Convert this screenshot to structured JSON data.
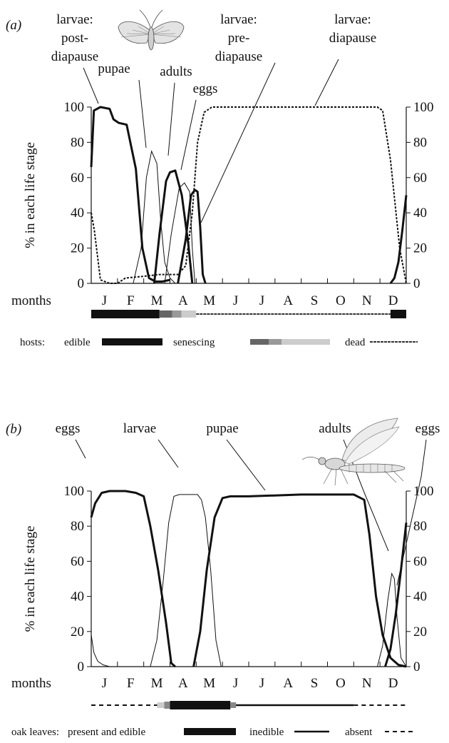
{
  "panels": [
    {
      "panel_label": "(a)",
      "y_axis_label": "% in each life stage",
      "months_label": "months",
      "months": [
        "J",
        "F",
        "M",
        "A",
        "M",
        "J",
        "J",
        "A",
        "S",
        "O",
        "N",
        "D"
      ],
      "stage_labels": [
        {
          "id": "larvae-post",
          "lines": [
            "larvae:",
            "post-",
            "diapause"
          ]
        },
        {
          "id": "pupae",
          "lines": [
            "pupae"
          ]
        },
        {
          "id": "adults",
          "lines": [
            "adults"
          ]
        },
        {
          "id": "eggs",
          "lines": [
            "eggs"
          ]
        },
        {
          "id": "larvae-pre",
          "lines": [
            "larvae:",
            "pre-",
            "diapause"
          ]
        },
        {
          "id": "larvae-dia",
          "lines": [
            "larvae:",
            "diapause"
          ]
        }
      ],
      "legend": {
        "prefix": "hosts:",
        "edible": "edible",
        "senescing": "senescing",
        "dead": "dead"
      },
      "illustration": "moth-drawing"
    },
    {
      "panel_label": "(b)",
      "y_axis_label": "% in each life stage",
      "months_label": "months",
      "months": [
        "J",
        "F",
        "M",
        "A",
        "M",
        "J",
        "J",
        "A",
        "S",
        "O",
        "N",
        "D"
      ],
      "stage_labels": [
        {
          "id": "eggs-1",
          "lines": [
            "eggs"
          ]
        },
        {
          "id": "larvae",
          "lines": [
            "larvae"
          ]
        },
        {
          "id": "pupae",
          "lines": [
            "pupae"
          ]
        },
        {
          "id": "adults",
          "lines": [
            "adults"
          ]
        },
        {
          "id": "eggs-2",
          "lines": [
            "eggs"
          ]
        }
      ],
      "legend": {
        "prefix": "oak leaves:",
        "edible": "present and edible",
        "inedible": "inedible",
        "absent": "absent"
      },
      "illustration": "fly-drawing"
    }
  ],
  "chart_data": [
    {
      "type": "line",
      "x_unit": "month (0 = start of January, 12 = end of December)",
      "ylim": [
        0,
        100
      ],
      "yticks": [
        0,
        20,
        40,
        60,
        80,
        100
      ],
      "grid": false,
      "series": [
        {
          "name": "larvae: post-diapause",
          "style": "thick",
          "x": [
            0,
            0.1,
            0.35,
            0.7,
            0.85,
            1.05,
            1.35,
            1.7,
            1.95,
            2.2,
            2.45,
            2.7,
            3.0
          ],
          "y": [
            66,
            98,
            100,
            99,
            93,
            91,
            90,
            65,
            20,
            3,
            1,
            1,
            2
          ]
        },
        {
          "name": "pupae",
          "style": "thin",
          "x": [
            1.6,
            1.9,
            2.1,
            2.3,
            2.5,
            2.65,
            2.8,
            3.0,
            3.2
          ],
          "y": [
            0,
            20,
            60,
            75,
            68,
            35,
            12,
            3,
            0
          ]
        },
        {
          "name": "adults",
          "style": "thick",
          "x": [
            2.4,
            2.6,
            2.85,
            3.0,
            3.2,
            3.45,
            3.7,
            3.85
          ],
          "y": [
            0,
            28,
            58,
            63,
            64,
            50,
            22,
            0
          ]
        },
        {
          "name": "eggs",
          "style": "thin",
          "x": [
            2.8,
            3.05,
            3.35,
            3.55,
            3.75,
            3.85,
            3.95
          ],
          "y": [
            0,
            28,
            54,
            57,
            52,
            20,
            0
          ]
        },
        {
          "name": "larvae: pre-diapause",
          "style": "thick",
          "x": [
            3.3,
            3.6,
            3.8,
            3.95,
            4.05,
            4.15,
            4.25,
            4.35
          ],
          "y": [
            0,
            25,
            50,
            53,
            52,
            32,
            5,
            0
          ]
        },
        {
          "name": "larvae: diapause",
          "style": "dashed",
          "x": [
            0,
            0.12,
            0.35,
            0.7,
            1.0,
            1.3,
            2.0,
            2.6,
            3.3,
            3.6,
            3.85,
            4.05,
            4.3,
            4.6,
            10.9,
            11.1,
            11.4,
            11.75,
            12.0
          ],
          "y": [
            40,
            30,
            2,
            0,
            0,
            3,
            4,
            5,
            5,
            10,
            40,
            80,
            97,
            100,
            100,
            98,
            70,
            20,
            0
          ]
        },
        {
          "name": "larvae: post-diapause (December)",
          "style": "thick",
          "x": [
            11.4,
            11.55,
            11.7,
            11.85,
            12.0
          ],
          "y": [
            0,
            3,
            12,
            30,
            50
          ]
        }
      ],
      "host_bar": [
        {
          "state": "edible",
          "from": 0,
          "to": 2.6
        },
        {
          "state": "senescing",
          "from": 2.6,
          "to": 4.0
        },
        {
          "state": "dead",
          "from": 4.0,
          "to": 11.4
        },
        {
          "state": "edible",
          "from": 11.4,
          "to": 12.0
        }
      ]
    },
    {
      "type": "line",
      "x_unit": "month (0 = start of January, 12 = end of December)",
      "ylim": [
        0,
        100
      ],
      "yticks": [
        0,
        20,
        40,
        60,
        80,
        100
      ],
      "grid": false,
      "series": [
        {
          "name": "eggs",
          "style": "thick",
          "x": [
            0,
            0.15,
            0.4,
            0.7,
            1.3,
            1.7,
            2.0,
            2.25,
            2.55,
            2.85,
            3.05,
            3.2
          ],
          "y": [
            85,
            93,
            99,
            100,
            100,
            99,
            97,
            80,
            55,
            25,
            2,
            0
          ]
        },
        {
          "name": "larvae",
          "style": "thin",
          "x": [
            2.25,
            2.5,
            2.75,
            2.95,
            3.15,
            3.35,
            3.55,
            3.75,
            4.05,
            4.2,
            4.35,
            4.55,
            4.75,
            4.95
          ],
          "y": [
            0,
            15,
            50,
            82,
            97,
            98,
            98,
            98,
            98,
            95,
            85,
            55,
            15,
            0
          ]
        },
        {
          "name": "pupae",
          "style": "thick",
          "x": [
            3.9,
            4.15,
            4.4,
            4.7,
            5.0,
            5.3,
            6.0,
            8.0,
            10.0,
            10.4,
            10.6,
            10.85,
            11.1,
            11.4,
            11.7,
            12.0
          ],
          "y": [
            0,
            20,
            55,
            85,
            96,
            97,
            97,
            98,
            98,
            95,
            75,
            40,
            18,
            5,
            1,
            0
          ]
        },
        {
          "name": "adults",
          "style": "thin",
          "x": [
            10.9,
            11.1,
            11.3,
            11.45,
            11.55,
            11.65,
            11.8,
            12.0
          ],
          "y": [
            0,
            12,
            38,
            53,
            50,
            28,
            5,
            0
          ]
        },
        {
          "name": "eggs (December)",
          "style": "thick",
          "x": [
            11.2,
            11.4,
            11.6,
            11.8,
            12.0
          ],
          "y": [
            0,
            10,
            30,
            55,
            82
          ]
        },
        {
          "name": "larvae (January)",
          "style": "thin",
          "x": [
            0,
            0.1,
            0.25,
            0.45,
            0.7
          ],
          "y": [
            18,
            8,
            3,
            1,
            0
          ]
        }
      ],
      "host_bar": [
        {
          "state": "absent",
          "from": 0,
          "to": 3.0
        },
        {
          "state": "edible",
          "from": 3.0,
          "to": 5.3
        },
        {
          "state": "inedible",
          "from": 5.3,
          "to": 10.0
        },
        {
          "state": "absent",
          "from": 10.0,
          "to": 12.0
        }
      ]
    }
  ]
}
